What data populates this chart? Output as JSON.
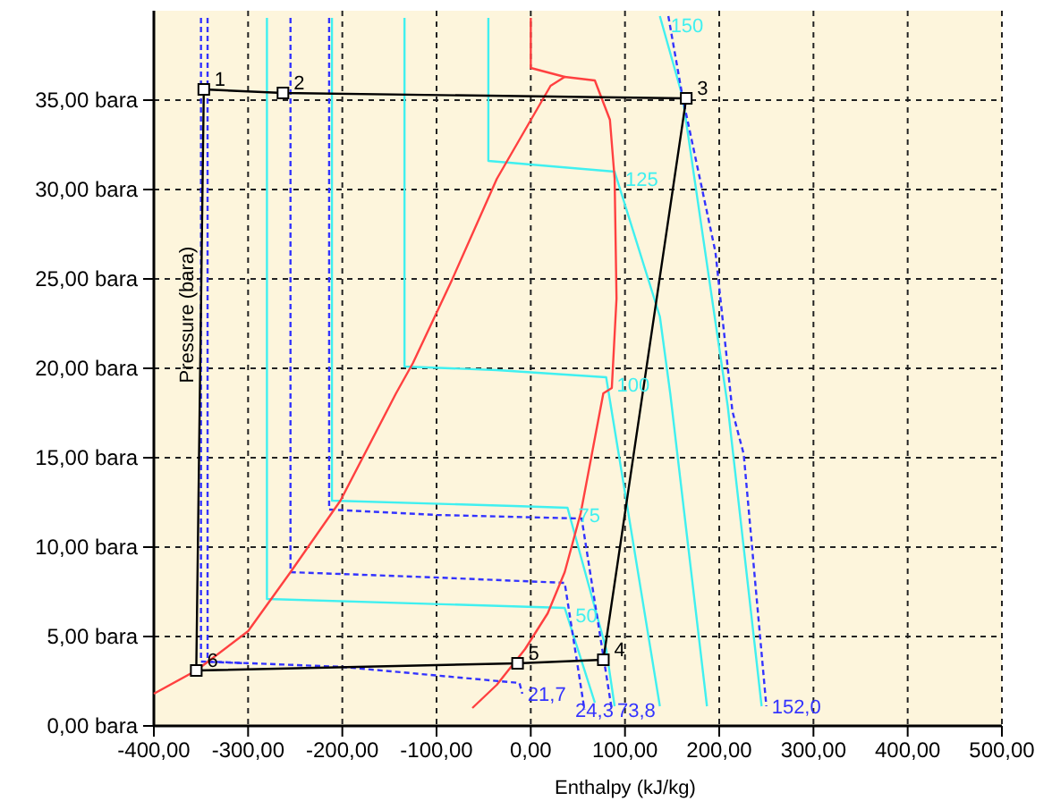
{
  "chart_data": {
    "type": "line",
    "xlabel": "Enthalpy (kJ/kg)",
    "ylabel": "Pressure (bara)",
    "xlim": [
      -400,
      500
    ],
    "ylim": [
      0,
      40
    ],
    "xticks": [
      {
        "value": -400,
        "label": "-400,00"
      },
      {
        "value": -300,
        "label": "-300,00"
      },
      {
        "value": -200,
        "label": "-200,00"
      },
      {
        "value": -100,
        "label": "-100,00"
      },
      {
        "value": 0,
        "label": "0,00"
      },
      {
        "value": 100,
        "label": "100,00"
      },
      {
        "value": 200,
        "label": "200,00"
      },
      {
        "value": 300,
        "label": "300,00"
      },
      {
        "value": 400,
        "label": "400,00"
      },
      {
        "value": 500,
        "label": "500,00"
      }
    ],
    "yticks": [
      {
        "value": 0,
        "label": "0,00 bara"
      },
      {
        "value": 5,
        "label": "5,00 bara"
      },
      {
        "value": 10,
        "label": "10,00 bara"
      },
      {
        "value": 15,
        "label": "15,00 bara"
      },
      {
        "value": 20,
        "label": "20,00 bara"
      },
      {
        "value": 25,
        "label": "25,00 bara"
      },
      {
        "value": 30,
        "label": "30,00 bara"
      },
      {
        "value": 35,
        "label": "35,00 bara"
      }
    ],
    "grid": true,
    "series": [
      {
        "name": "50",
        "color": "#40f0f0",
        "x": [
          -280,
          -280,
          36,
          68
        ],
        "values": [
          39.6,
          7.1,
          6.6,
          1.3
        ]
      },
      {
        "name": "75",
        "color": "#40f0f0",
        "x": [
          -211,
          -211,
          -18,
          39,
          80,
          89
        ],
        "values": [
          39.6,
          12.6,
          12.3,
          12.2,
          4.3,
          1.1
        ]
      },
      {
        "name": "100",
        "color": "#40f0f0",
        "x": [
          -134,
          -134,
          -36,
          80,
          137
        ],
        "values": [
          39.6,
          20.1,
          19.9,
          19.5,
          1.1
        ]
      },
      {
        "name": "125",
        "color": "#40f0f0",
        "x": [
          -45,
          -45,
          89,
          137,
          148,
          187
        ],
        "values": [
          39.6,
          31.6,
          31.0,
          22.9,
          18.6,
          1.1
        ]
      },
      {
        "name": "150",
        "color": "#40f0f0",
        "x": [
          137,
          161,
          209,
          245
        ],
        "values": [
          39.7,
          35.2,
          17.9,
          1.1
        ]
      },
      {
        "color": "#3333ff",
        "line_style": "dashed",
        "x": [
          -350,
          -350,
          -300
        ],
        "values": [
          39.6,
          3.6,
          3.5
        ]
      },
      {
        "name": "21,7",
        "color": "#3333ff",
        "line_style": "dashed",
        "x": [
          -343,
          -343,
          -200,
          -12,
          -9
        ],
        "values": [
          39.6,
          3.6,
          3.3,
          2.4,
          1.8
        ]
      },
      {
        "name": "24,3",
        "color": "#3333ff",
        "line_style": "dashed",
        "x": [
          -255,
          -255,
          -100,
          36,
          57
        ],
        "values": [
          39.6,
          8.6,
          8.3,
          8.0,
          0.9
        ]
      },
      {
        "name": "73,8",
        "color": "#3333ff",
        "line_style": "dashed",
        "x": [
          -214,
          -214,
          -100,
          54,
          86
        ],
        "values": [
          39.6,
          12.1,
          11.8,
          11.6,
          0.9
        ]
      },
      {
        "name": "152,0",
        "color": "#3333ff",
        "line_style": "dashed",
        "x": [
          146,
          161,
          196,
          214,
          226,
          250
        ],
        "values": [
          39.7,
          35.2,
          26.5,
          17.6,
          15.2,
          1.1
        ]
      },
      {
        "color": "#ff4040",
        "x": [
          -400,
          -355,
          -300,
          -255,
          -202,
          -143,
          -125,
          -84,
          -36,
          21,
          36,
          68,
          84,
          89,
          91,
          86,
          77,
          53,
          36,
          18,
          -6,
          -36,
          -62
        ],
        "values": [
          1.8,
          3.1,
          5.3,
          8.6,
          12.6,
          18.6,
          20.3,
          24.9,
          30.6,
          35.8,
          36.3,
          36.1,
          33.9,
          30.6,
          23.9,
          18.9,
          18.6,
          11.9,
          8.6,
          6.3,
          4.3,
          2.3,
          1.0
        ]
      },
      {
        "color": "#ff4040",
        "x": [
          0,
          0,
          36
        ],
        "values": [
          39.6,
          36.8,
          36.3
        ]
      },
      {
        "color": "#000000",
        "x": [
          -355,
          -347,
          -263,
          165
        ],
        "values": [
          3.1,
          35.6,
          35.4,
          35.1
        ]
      },
      {
        "color": "#000000",
        "x": [
          165,
          77,
          -14,
          -355
        ],
        "values": [
          35.1,
          3.7,
          3.5,
          3.1
        ]
      },
      {
        "name": "1",
        "type": "scatter",
        "marker": "square",
        "color": "#000000",
        "x": [
          -347
        ],
        "values": [
          35.6
        ]
      },
      {
        "name": "2",
        "type": "scatter",
        "marker": "square",
        "color": "#000000",
        "x": [
          -263
        ],
        "values": [
          35.4
        ]
      },
      {
        "name": "3",
        "type": "scatter",
        "marker": "square",
        "color": "#000000",
        "x": [
          165
        ],
        "values": [
          35.1
        ]
      },
      {
        "name": "4",
        "type": "scatter",
        "marker": "square",
        "color": "#000000",
        "x": [
          77
        ],
        "values": [
          3.7
        ]
      },
      {
        "name": "5",
        "type": "scatter",
        "marker": "square",
        "color": "#000000",
        "x": [
          -14
        ],
        "values": [
          3.5
        ]
      },
      {
        "name": "6",
        "type": "scatter",
        "marker": "square",
        "color": "#000000",
        "x": [
          -355
        ],
        "values": [
          3.1
        ]
      }
    ]
  }
}
